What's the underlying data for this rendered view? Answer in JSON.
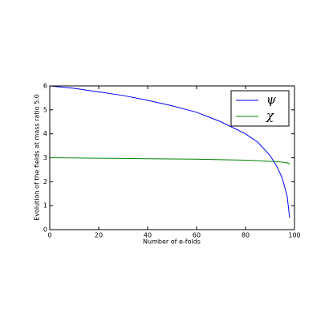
{
  "chart_data": {
    "type": "line",
    "x_label": "Number of e-folds",
    "y_label": "Evolution of the fields at mass ratio 5.0",
    "x": [
      0,
      10,
      20,
      30,
      40,
      50,
      60,
      70,
      80,
      85,
      90,
      93,
      95,
      97,
      98
    ],
    "series": [
      {
        "name": "ψ",
        "color": "#0000ff",
        "values": [
          6.0,
          5.9,
          5.75,
          5.6,
          5.4,
          5.17,
          4.9,
          4.5,
          4.0,
          3.65,
          3.1,
          2.6,
          2.15,
          1.4,
          0.5
        ]
      },
      {
        "name": "χ",
        "color": "#008000",
        "values": [
          3.0,
          2.99,
          2.98,
          2.97,
          2.96,
          2.95,
          2.94,
          2.92,
          2.9,
          2.88,
          2.85,
          2.83,
          2.82,
          2.79,
          2.74
        ]
      }
    ],
    "xlim": [
      0,
      100
    ],
    "xticks": [
      0,
      20,
      40,
      60,
      80,
      100
    ],
    "ylim": [
      0,
      6
    ],
    "yticks": [
      0,
      1,
      2,
      3,
      4,
      5,
      6
    ],
    "legend": "upper right"
  }
}
